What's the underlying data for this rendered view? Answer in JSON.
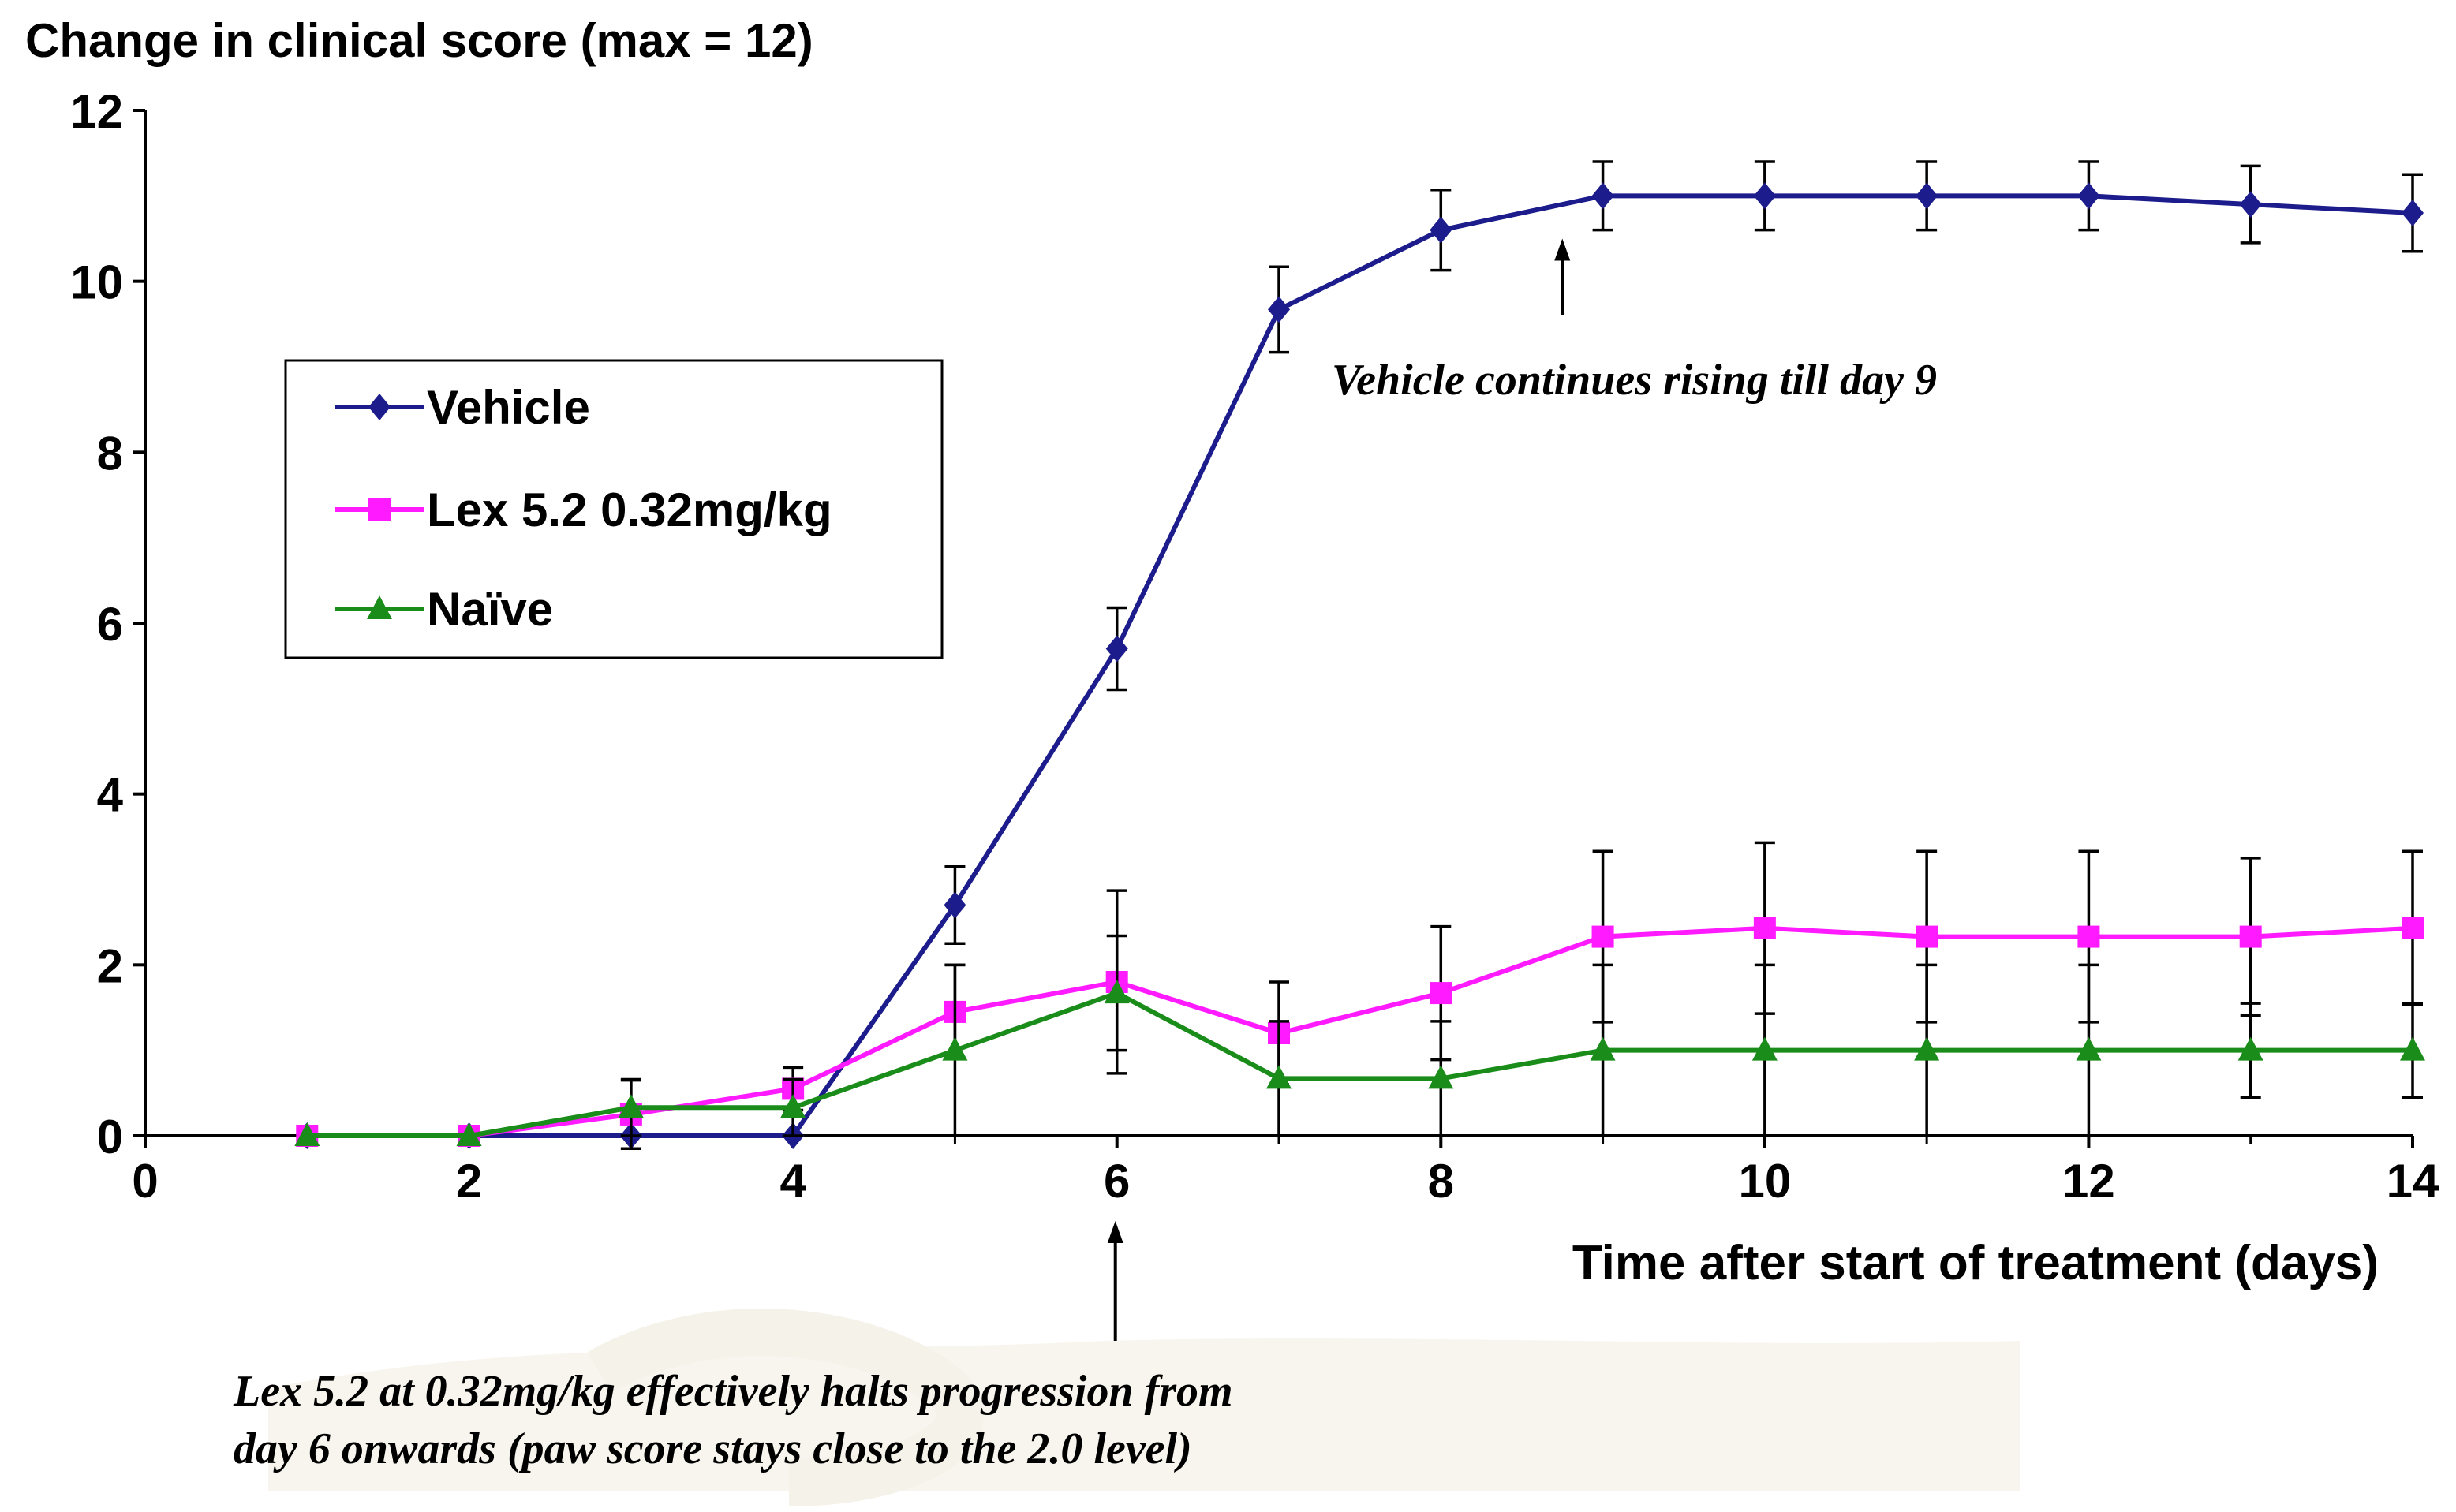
{
  "chart_data": {
    "type": "line",
    "title": "Change in clinical score (max = 12)",
    "xlabel": "Time after start of treatment (days)",
    "ylabel": "",
    "xlim": [
      0,
      14
    ],
    "ylim": [
      0,
      12
    ],
    "xticks": [
      "0",
      "2",
      "4",
      "6",
      "8",
      "10",
      "12",
      "14"
    ],
    "yticks": [
      "0",
      "2",
      "4",
      "6",
      "8",
      "10",
      "12"
    ],
    "grid": false,
    "legend_position": "upper-left",
    "series": [
      {
        "name": "Vehicle",
        "color": "#1c1c8c",
        "marker": "diamond",
        "x": [
          1,
          2,
          3,
          4,
          5,
          6,
          7,
          8,
          9,
          10,
          11,
          12,
          13,
          14
        ],
        "values": [
          0,
          0,
          0,
          0,
          2.7,
          5.7,
          9.67,
          10.6,
          11.0,
          11.0,
          11.0,
          11.0,
          10.9,
          10.8
        ],
        "errors": [
          0,
          0,
          0,
          0,
          0.45,
          0.48,
          0.5,
          0.47,
          0.4,
          0.4,
          0.4,
          0.4,
          0.45,
          0.45
        ]
      },
      {
        "name": "Lex 5.2 0.32mg/kg",
        "color": "#ff1aff",
        "marker": "square",
        "x": [
          1,
          2,
          3,
          4,
          5,
          6,
          7,
          8,
          9,
          10,
          11,
          12,
          13,
          14
        ],
        "values": [
          0,
          0,
          0.25,
          0.55,
          1.45,
          1.8,
          1.2,
          1.67,
          2.33,
          2.43,
          2.33,
          2.33,
          2.33,
          2.43
        ],
        "errors": [
          0,
          0,
          0.4,
          0.25,
          0.55,
          1.07,
          0.6,
          0.78,
          1.0,
          1.0,
          1.0,
          1.0,
          0.92,
          0.9
        ]
      },
      {
        "name": "Naïve",
        "color": "#1a8c1a",
        "marker": "triangle",
        "x": [
          1,
          2,
          3,
          4,
          5,
          6,
          7,
          8,
          9,
          10,
          11,
          12,
          13,
          14
        ],
        "values": [
          0,
          0,
          0.33,
          0.33,
          1.0,
          1.67,
          0.67,
          0.67,
          1.0,
          1.0,
          1.0,
          1.0,
          1.0,
          1.0
        ],
        "errors": [
          0,
          0,
          0.33,
          0.33,
          1.0,
          0.67,
          0.67,
          0.67,
          1.0,
          1.0,
          1.0,
          1.0,
          0.55,
          0.55
        ]
      }
    ],
    "annotations": [
      {
        "name": "vehicle-annotation",
        "text_lines": [
          "Vehicle continues rising till day 9"
        ],
        "arrow_x": 8.75,
        "arrow_from_y": 9.6,
        "arrow_to_y": 10.5
      },
      {
        "name": "lex-annotation",
        "text_lines": [
          "Lex 5.2 at 0.32mg/kg effectively halts progression from",
          "day 6 onwards (paw score stays close to the 2.0 level)"
        ],
        "arrow_x": 6
      }
    ]
  }
}
